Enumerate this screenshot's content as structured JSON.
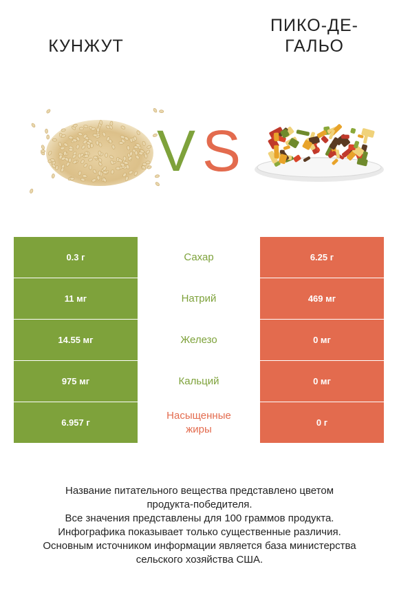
{
  "header": {
    "left_title": "КУНЖУТ",
    "right_title_line1": "ПИКО-ДЕ-",
    "right_title_line2": "ГАЛЬО",
    "vs_v": "V",
    "vs_s": "S"
  },
  "colors": {
    "winner_left": "#7ea23b",
    "winner_right": "#e36b4e"
  },
  "rows": [
    {
      "left": "0.3 г",
      "label": "Сахар",
      "label_color": "green",
      "right": "6.25 г"
    },
    {
      "left": "11 мг",
      "label": "Натрий",
      "label_color": "green",
      "right": "469 мг"
    },
    {
      "left": "14.55 мг",
      "label": "Железо",
      "label_color": "green",
      "right": "0 мг"
    },
    {
      "left": "975 мг",
      "label": "Кальций",
      "label_color": "green",
      "right": "0 мг"
    },
    {
      "left": "6.957 г",
      "label_line1": "Насыщенные",
      "label_line2": "жиры",
      "label_color": "red",
      "right": "0 г"
    }
  ],
  "footer": {
    "line1": "Название питательного вещества представлено цветом",
    "line2": "продукта-победителя.",
    "line3": "Все значения представлены для 100 граммов продукта.",
    "line4": "Инфографика показывает только существенные различия.",
    "line5": "Основным источником информации является база министерства",
    "line6": "сельского хозяйства США."
  }
}
